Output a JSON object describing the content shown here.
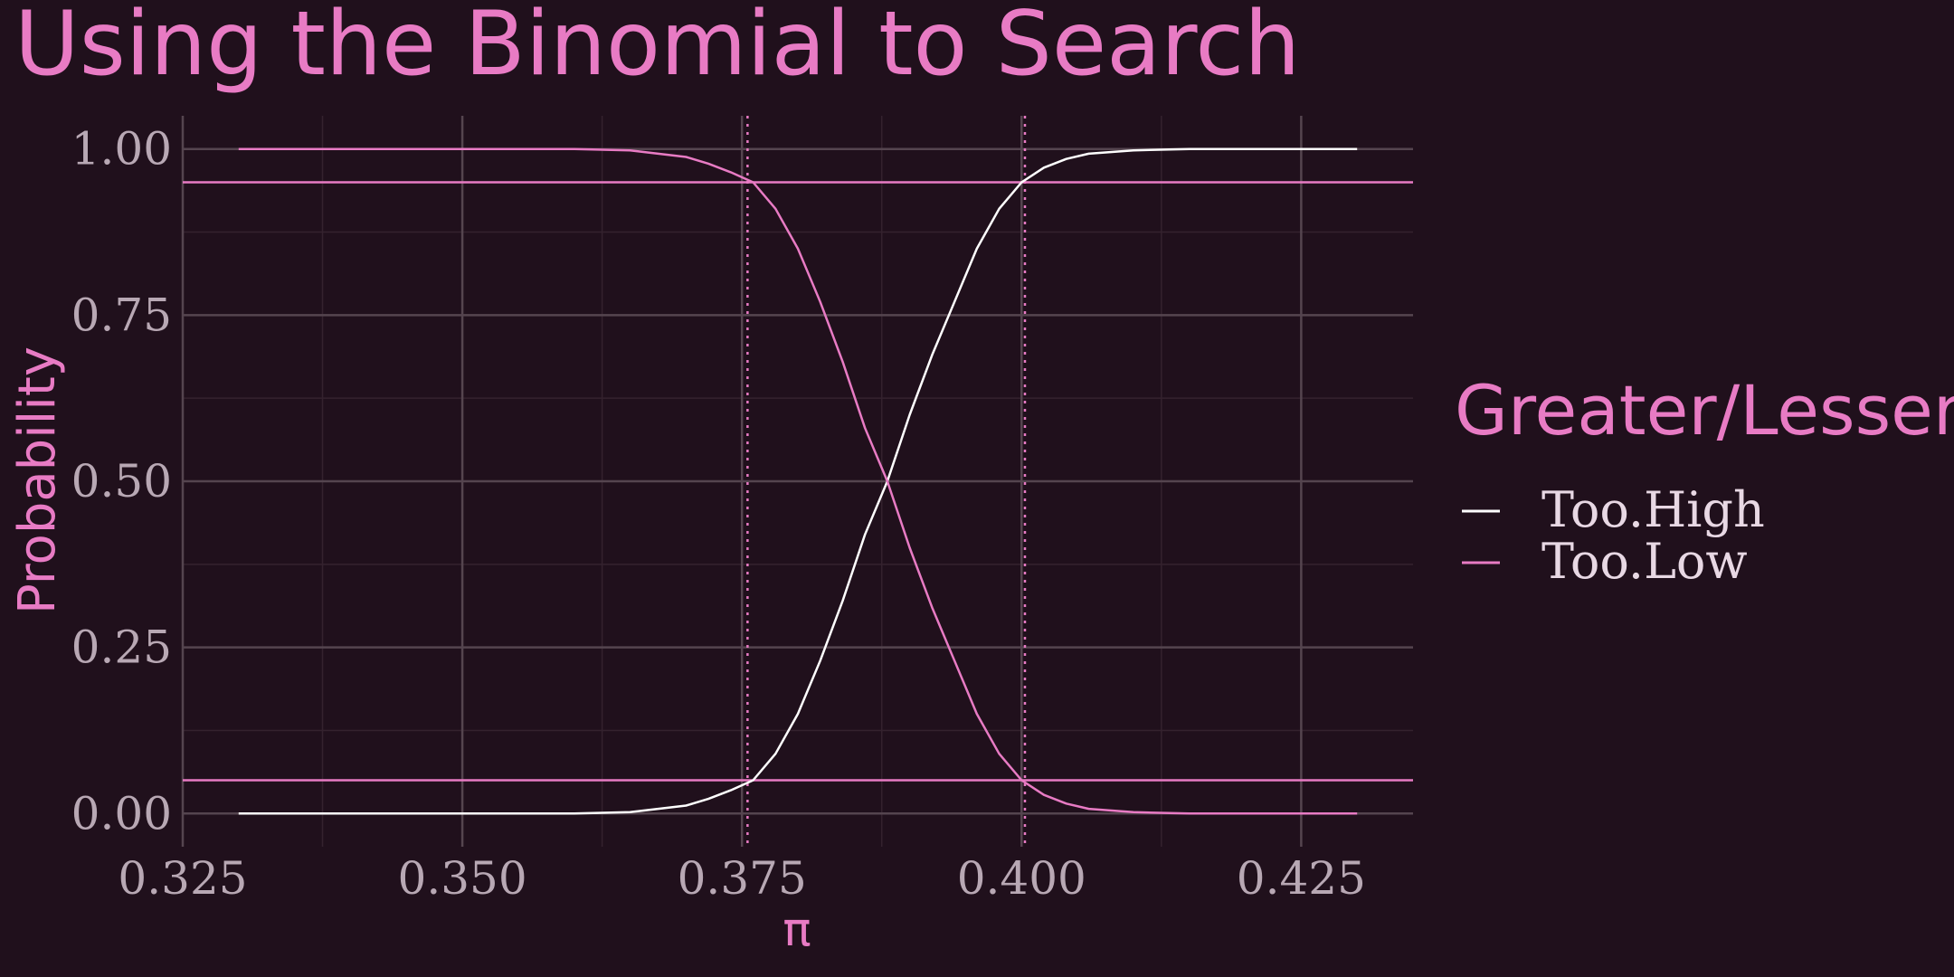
{
  "chart_data": {
    "type": "line",
    "title": "Using the Binomial to Search",
    "xlabel": "π",
    "ylabel": "Probability",
    "xlim": [
      0.325,
      0.435
    ],
    "ylim": [
      -0.05,
      1.05
    ],
    "x_ticks": [
      0.325,
      0.35,
      0.375,
      0.4,
      0.425
    ],
    "x_tick_labels": [
      "0.325",
      "0.350",
      "0.375",
      "0.400",
      "0.425"
    ],
    "y_ticks": [
      0,
      0.25,
      0.5,
      0.75,
      1
    ],
    "y_tick_labels": [
      "0.00",
      "0.25",
      "0.50",
      "0.75",
      "1.00"
    ],
    "grid": true,
    "legend": {
      "title": "Greater/Lesser",
      "placement": "right",
      "entries": [
        {
          "label": "Too.High",
          "color": "#ffffff"
        },
        {
          "label": "Too.Low",
          "color": "#e87bc4"
        }
      ]
    },
    "x_range": [
      0.33,
      0.43
    ],
    "series": [
      {
        "name": "Too.High",
        "color": "#ffffff",
        "x": [
          0.33,
          0.34,
          0.35,
          0.36,
          0.365,
          0.37,
          0.372,
          0.374,
          0.376,
          0.378,
          0.38,
          0.382,
          0.384,
          0.386,
          0.388,
          0.39,
          0.392,
          0.394,
          0.396,
          0.398,
          0.4,
          0.402,
          0.404,
          0.406,
          0.41,
          0.415,
          0.42,
          0.43
        ],
        "values": [
          0.0,
          0.0,
          0.0,
          0.0,
          0.002,
          0.012,
          0.022,
          0.035,
          0.05,
          0.09,
          0.15,
          0.23,
          0.32,
          0.42,
          0.5,
          0.6,
          0.69,
          0.77,
          0.85,
          0.91,
          0.95,
          0.972,
          0.985,
          0.993,
          0.998,
          1.0,
          1.0,
          1.0
        ]
      },
      {
        "name": "Too.Low",
        "color": "#e87bc4",
        "x": [
          0.33,
          0.34,
          0.35,
          0.36,
          0.365,
          0.37,
          0.372,
          0.374,
          0.376,
          0.378,
          0.38,
          0.382,
          0.384,
          0.386,
          0.388,
          0.39,
          0.392,
          0.394,
          0.396,
          0.398,
          0.4,
          0.402,
          0.404,
          0.406,
          0.41,
          0.415,
          0.42,
          0.43
        ],
        "values": [
          1.0,
          1.0,
          1.0,
          1.0,
          0.998,
          0.988,
          0.978,
          0.965,
          0.95,
          0.91,
          0.85,
          0.77,
          0.68,
          0.58,
          0.5,
          0.4,
          0.31,
          0.23,
          0.15,
          0.09,
          0.05,
          0.028,
          0.015,
          0.007,
          0.002,
          0.0,
          0.0,
          0.0
        ]
      }
    ],
    "reference_lines": {
      "horizontal": [
        0.95,
        0.05
      ],
      "vertical": [
        0.3755,
        0.4003
      ]
    },
    "colors": {
      "background": "#20101c",
      "accent": "#e87bc4",
      "tick_text": "#b8a8b4",
      "grid_major": "#55454f",
      "grid_minor": "#34222e",
      "legend_text": "#e8d8e4"
    }
  }
}
